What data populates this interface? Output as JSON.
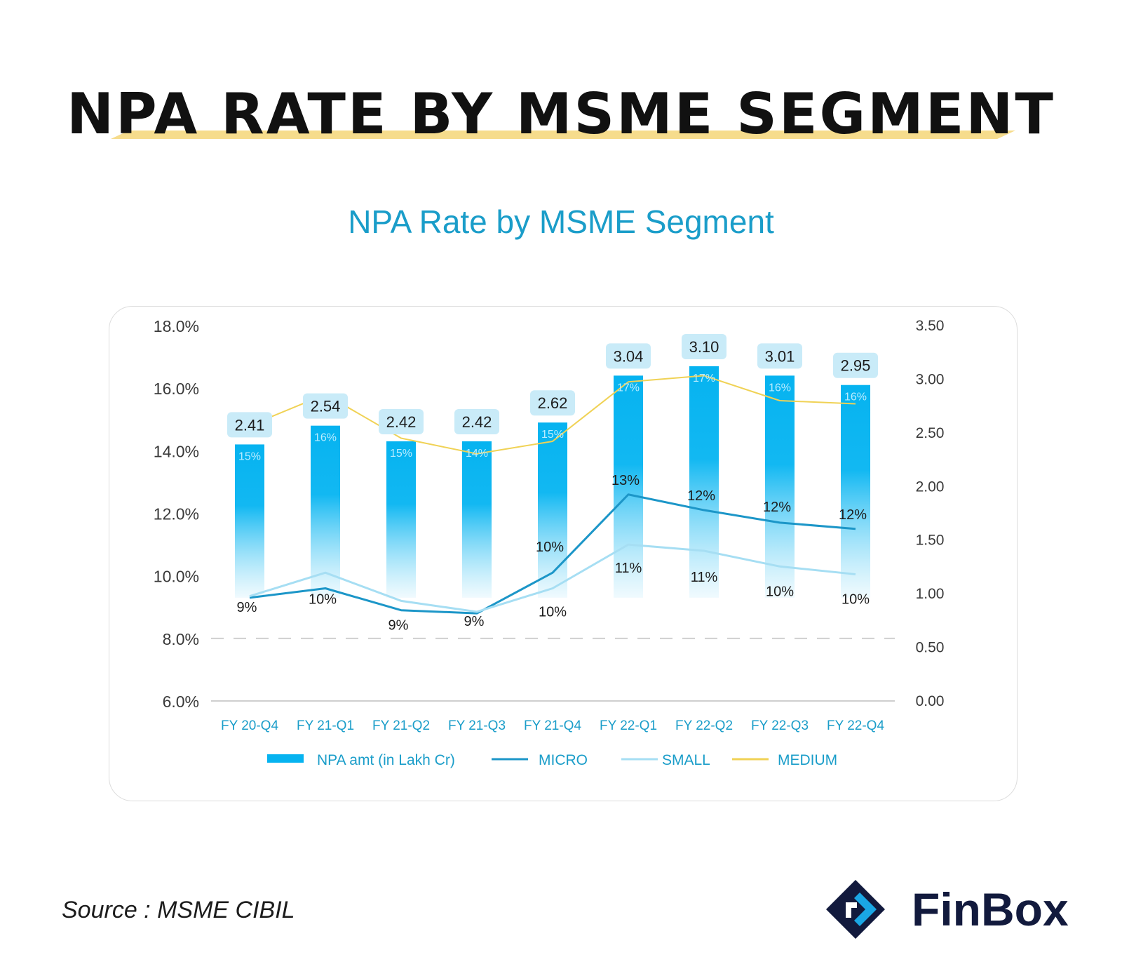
{
  "header": {
    "title": "NPA RATE BY MSME SEGMENT",
    "subtitle": "NPA Rate by MSME Segment"
  },
  "footer": {
    "source": "Source : MSME CIBIL",
    "brand": "FinBox"
  },
  "colors": {
    "bar_top": "#06b3f0",
    "bar_bottom": "#e6f7fd",
    "micro": "#1c96c8",
    "small": "#a6def3",
    "medium": "#f0d255",
    "label_box": "#c9ebf8",
    "axis_text": "#3a3a3a",
    "category_text": "#1a9dc9",
    "title_underline": "#f6dc8c",
    "brand_navy": "#121a3d",
    "brand_blue": "#1aa6e4"
  },
  "icons": [
    "finbox-logo-icon"
  ],
  "chart_data": {
    "type": "bar",
    "categories": [
      "FY 20-Q4",
      "FY 21-Q1",
      "FY 21-Q2",
      "FY 21-Q3",
      "FY 21-Q4",
      "FY 22-Q1",
      "FY 22-Q2",
      "FY 22-Q3",
      "FY 22-Q4"
    ],
    "y_left": {
      "ticks": [
        "18.0%",
        "16.0%",
        "14.0%",
        "12.0%",
        "10.0%",
        "8.0%",
        "6.0%"
      ],
      "min": 6,
      "max": 18
    },
    "y_right": {
      "ticks": [
        "3.50",
        "3.00",
        "2.50",
        "2.00",
        "1.50",
        "1.00",
        "0.50",
        "0.00"
      ],
      "min": 0,
      "max": 3.5
    },
    "reference_line": {
      "value": 8.0,
      "style": "dashed"
    },
    "grid": false,
    "legend_position": "bottom",
    "series": [
      {
        "name": "NPA amt (in Lakh Cr)",
        "type": "bar",
        "axis": "right",
        "values": [
          2.41,
          2.54,
          2.42,
          2.42,
          2.62,
          3.04,
          3.1,
          3.01,
          2.95
        ],
        "labels": [
          "2.41",
          "2.54",
          "2.42",
          "2.42",
          "2.62",
          "3.04",
          "3.10",
          "3.01",
          "2.95"
        ],
        "bar_tops": [
          14.2,
          14.8,
          14.3,
          14.3,
          14.9,
          16.4,
          16.7,
          16.4,
          16.1
        ],
        "inner_labels": [
          "15%",
          "16%",
          "15%",
          "14%",
          "15%",
          "17%",
          "17%",
          "16%",
          "16%"
        ]
      },
      {
        "name": "MICRO",
        "type": "line",
        "axis": "left",
        "values": [
          9.3,
          9.6,
          8.9,
          8.8,
          10.1,
          12.6,
          12.1,
          11.7,
          11.5
        ],
        "labels": [
          "9%",
          "10%",
          "9%",
          "9%",
          "10%",
          "13%",
          "12%",
          "12%",
          "12%"
        ]
      },
      {
        "name": "SMALL",
        "type": "line",
        "axis": "left",
        "values": [
          9.35,
          10.1,
          9.2,
          8.85,
          9.6,
          11.0,
          10.8,
          10.3,
          10.05
        ],
        "labels": [
          "",
          "",
          "",
          "",
          "10%",
          "11%",
          "11%",
          "10%",
          "10%"
        ]
      },
      {
        "name": "MEDIUM",
        "type": "line",
        "axis": "left",
        "values": [
          14.8,
          15.8,
          14.4,
          13.9,
          14.3,
          16.2,
          16.4,
          15.6,
          15.5
        ],
        "labels": []
      }
    ]
  }
}
